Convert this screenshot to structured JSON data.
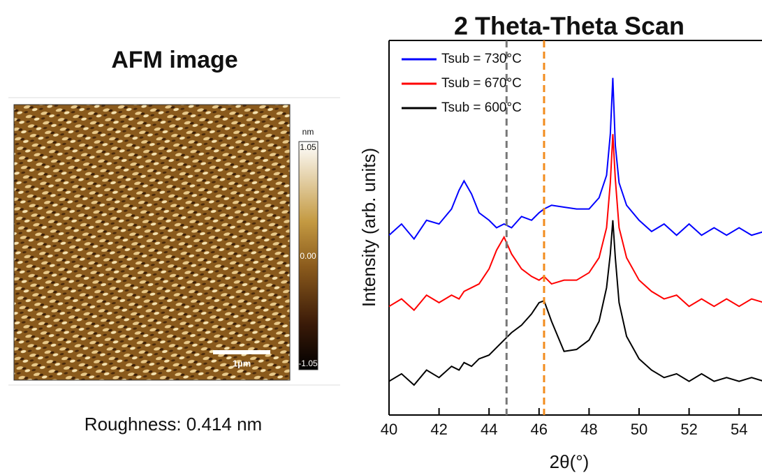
{
  "afm": {
    "title": "AFM image",
    "colorbar": {
      "unit": "nm",
      "max": "1.05",
      "mid": "0.00",
      "min": "-1.05"
    },
    "scale_bar": "1µm",
    "roughness": "Roughness: 0.414 nm"
  },
  "chart_data": {
    "type": "line",
    "title": "2 Theta-Theta Scan",
    "x_label": "2θ(°)",
    "y_label": "Intensity (arb. units)",
    "x": [
      40,
      40.5,
      41,
      41.5,
      42,
      42.5,
      42.8,
      43,
      43.3,
      43.6,
      44,
      44.3,
      44.6,
      44.9,
      45.3,
      45.7,
      46,
      46.2,
      46.5,
      47,
      47.5,
      48,
      48.4,
      48.7,
      48.85,
      48.95,
      49.05,
      49.2,
      49.5,
      50,
      50.5,
      51,
      51.5,
      52,
      52.5,
      53,
      53.5,
      54,
      54.5,
      55
    ],
    "series": [
      {
        "name": "Tsub = 730°C",
        "color": "#0000ff",
        "values": [
          4.8,
          5.1,
          4.7,
          5.2,
          5.1,
          5.5,
          6.0,
          6.25,
          5.9,
          5.4,
          5.2,
          5.0,
          5.1,
          5.0,
          5.3,
          5.2,
          5.4,
          5.5,
          5.6,
          5.55,
          5.5,
          5.5,
          5.8,
          6.4,
          7.5,
          9.0,
          7.2,
          6.2,
          5.6,
          5.2,
          4.9,
          5.1,
          4.8,
          5.1,
          4.8,
          5.0,
          4.8,
          5.0,
          4.8,
          4.9
        ]
      },
      {
        "name": "Tsub = 670°C",
        "color": "#ff0000",
        "values": [
          2.9,
          3.1,
          2.8,
          3.2,
          3.0,
          3.2,
          3.1,
          3.3,
          3.4,
          3.5,
          3.9,
          4.4,
          4.75,
          4.3,
          3.9,
          3.7,
          3.6,
          3.7,
          3.5,
          3.6,
          3.6,
          3.8,
          4.2,
          5.0,
          6.2,
          7.5,
          6.3,
          5.0,
          4.2,
          3.6,
          3.3,
          3.1,
          3.2,
          2.9,
          3.1,
          2.9,
          3.1,
          2.9,
          3.1,
          3.0
        ]
      },
      {
        "name": "Tsub = 600°C",
        "color": "#000000",
        "values": [
          0.9,
          1.1,
          0.8,
          1.2,
          1.0,
          1.3,
          1.2,
          1.4,
          1.3,
          1.5,
          1.6,
          1.8,
          2.0,
          2.2,
          2.4,
          2.7,
          3.0,
          3.05,
          2.5,
          1.7,
          1.75,
          2.0,
          2.5,
          3.4,
          4.3,
          5.2,
          4.2,
          3.0,
          2.1,
          1.5,
          1.2,
          1.0,
          1.1,
          0.9,
          1.1,
          0.9,
          1.0,
          0.9,
          1.0,
          0.9
        ]
      }
    ],
    "reference_lines": [
      {
        "x": 44.7,
        "color": "#777777"
      },
      {
        "x": 46.2,
        "color": "#f28c1e"
      }
    ],
    "xlim": [
      40,
      55
    ],
    "xticks": [
      40,
      42,
      44,
      46,
      48,
      50,
      52,
      54
    ],
    "ylim": [
      0,
      10
    ],
    "legend": "upper left"
  }
}
